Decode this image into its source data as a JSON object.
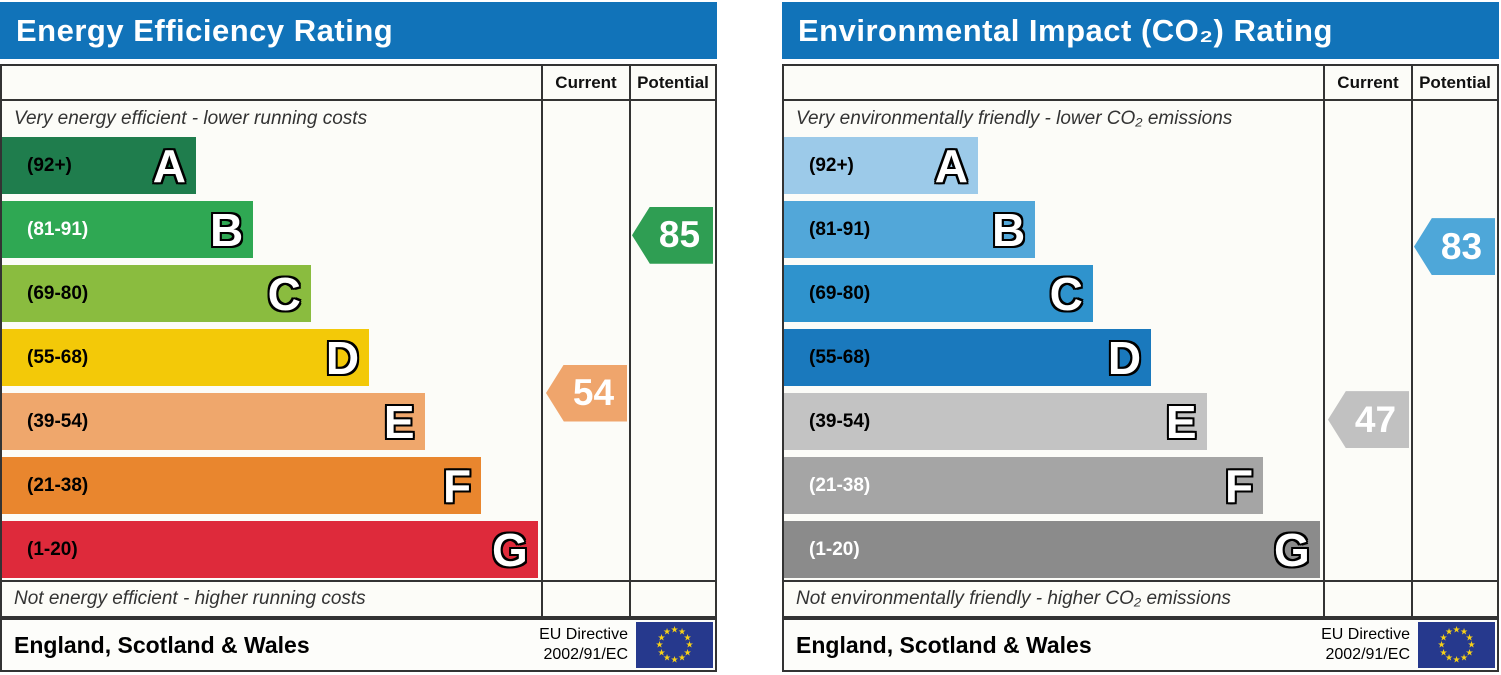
{
  "theme": {
    "header_bg": "#1173b9",
    "header_text": "#ffffff",
    "table_border": "#333333",
    "flag_bg": "#26398d",
    "flag_star": "#f7d117"
  },
  "chart_data": [
    {
      "type": "bar",
      "variant": "epc-rating-scale",
      "title": "Energy Efficiency Rating",
      "columns": [
        "Current",
        "Potential"
      ],
      "top_caption": "Very energy efficient - lower running costs",
      "bottom_caption": "Not energy efficient - higher running costs",
      "bands": [
        {
          "grade": "A",
          "range_label": "(92+)",
          "min": 92,
          "max": 100,
          "color": "#1f7d4d",
          "label_color": "#000000",
          "width_pct": 36.0
        },
        {
          "grade": "B",
          "range_label": "(81-91)",
          "min": 81,
          "max": 91,
          "color": "#2fa853",
          "label_color": "#ffffff",
          "width_pct": 46.6
        },
        {
          "grade": "C",
          "range_label": "(69-80)",
          "min": 69,
          "max": 80,
          "color": "#8abc3f",
          "label_color": "#000000",
          "width_pct": 57.3
        },
        {
          "grade": "D",
          "range_label": "(55-68)",
          "min": 55,
          "max": 68,
          "color": "#f3c908",
          "label_color": "#000000",
          "width_pct": 68.1
        },
        {
          "grade": "E",
          "range_label": "(39-54)",
          "min": 39,
          "max": 54,
          "color": "#efa76c",
          "label_color": "#000000",
          "width_pct": 78.4
        },
        {
          "grade": "F",
          "range_label": "(21-38)",
          "min": 21,
          "max": 38,
          "color": "#e9862e",
          "label_color": "#000000",
          "width_pct": 88.9
        },
        {
          "grade": "G",
          "range_label": "(1-20)",
          "min": 1,
          "max": 20,
          "color": "#de2a3b",
          "label_color": "#000000",
          "width_pct": 99.4
        }
      ],
      "current": {
        "value": 54,
        "grade": "E",
        "color": "#efa56c"
      },
      "potential": {
        "value": 85,
        "grade": "B",
        "color": "#2f9e53"
      },
      "footer": {
        "region": "England, Scotland & Wales",
        "directive": [
          "EU Directive",
          "2002/91/EC"
        ],
        "flag": "eu-flag"
      }
    },
    {
      "type": "bar",
      "variant": "epc-rating-scale",
      "title": "Environmental Impact (CO₂) Rating",
      "columns": [
        "Current",
        "Potential"
      ],
      "top_caption": "Very environmentally friendly - lower CO₂ emissions",
      "bottom_caption": "Not environmentally friendly - higher CO₂ emissions",
      "bands": [
        {
          "grade": "A",
          "range_label": "(92+)",
          "min": 92,
          "max": 100,
          "color": "#9ccae9",
          "label_color": "#000000",
          "width_pct": 36.0
        },
        {
          "grade": "B",
          "range_label": "(81-91)",
          "min": 81,
          "max": 91,
          "color": "#52a7d9",
          "label_color": "#000000",
          "width_pct": 46.6
        },
        {
          "grade": "C",
          "range_label": "(69-80)",
          "min": 69,
          "max": 80,
          "color": "#2f93cd",
          "label_color": "#000000",
          "width_pct": 57.3
        },
        {
          "grade": "D",
          "range_label": "(55-68)",
          "min": 55,
          "max": 68,
          "color": "#1a79bd",
          "label_color": "#000000",
          "width_pct": 68.1
        },
        {
          "grade": "E",
          "range_label": "(39-54)",
          "min": 39,
          "max": 54,
          "color": "#c3c3c3",
          "label_color": "#000000",
          "width_pct": 78.4
        },
        {
          "grade": "F",
          "range_label": "(21-38)",
          "min": 21,
          "max": 38,
          "color": "#a5a5a5",
          "label_color": "#ffffff",
          "width_pct": 88.9
        },
        {
          "grade": "G",
          "range_label": "(1-20)",
          "min": 1,
          "max": 20,
          "color": "#8b8b8b",
          "label_color": "#ffffff",
          "width_pct": 99.4
        }
      ],
      "current": {
        "value": 47,
        "grade": "E",
        "color": "#c1c1c1"
      },
      "potential": {
        "value": 83,
        "grade": "B",
        "color": "#4ea7d9"
      },
      "footer": {
        "region": "England, Scotland & Wales",
        "directive": [
          "EU Directive",
          "2002/91/EC"
        ],
        "flag": "eu-flag"
      }
    }
  ]
}
